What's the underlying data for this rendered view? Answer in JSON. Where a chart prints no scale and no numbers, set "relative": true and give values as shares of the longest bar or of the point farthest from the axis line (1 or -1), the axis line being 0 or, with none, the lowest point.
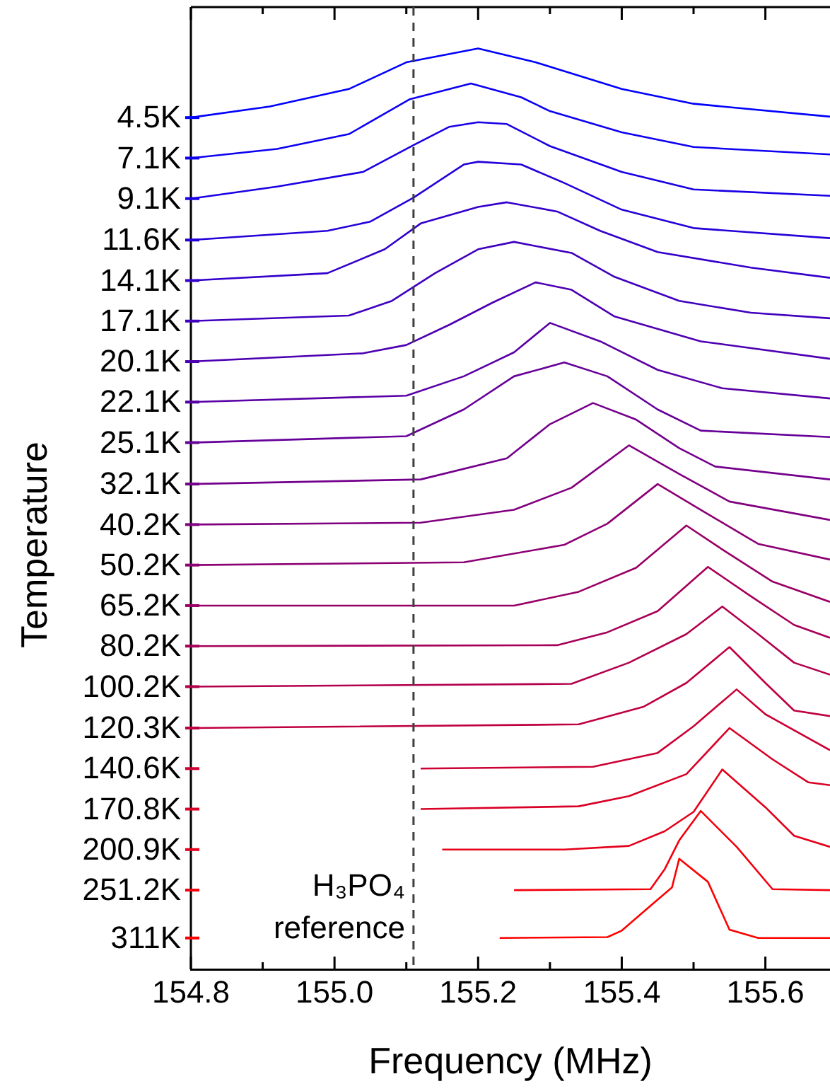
{
  "chart_data": {
    "type": "line",
    "xlabel": "Frequency (MHz)",
    "ylabel": "Temperature",
    "relative": true,
    "xlim": [
      154.8,
      155.69
    ],
    "xticks": [
      154.8,
      {
        "value": 154.9,
        "label": null
      },
      {
        "value": 155.0,
        "label": "155.0"
      },
      {
        "value": 155.1,
        "label": null
      },
      155.2,
      {
        "value": 155.3,
        "label": null
      },
      155.4,
      {
        "value": 155.5,
        "label": null
      },
      155.6
    ],
    "grid": false,
    "legend": "left",
    "marker": "none",
    "line_style": "solid",
    "ref_lines": [
      {
        "axis": "x",
        "value": 155.11,
        "label": "H₃PO₄ reference",
        "color": "#404040",
        "line_style": "dashed"
      }
    ],
    "series": [
      {
        "name": "4.5K",
        "color": "#0000ff",
        "x": [
          154.8,
          154.91,
          155.02,
          155.1,
          155.2,
          155.28,
          155.4,
          155.5,
          155.69
        ],
        "values": [
          0.925,
          0.937,
          0.956,
          0.985,
          1.0,
          0.985,
          0.956,
          0.94,
          0.926
        ]
      },
      {
        "name": "7.1K",
        "color": "#0d00f2",
        "x": [
          154.8,
          154.92,
          155.02,
          155.105,
          155.19,
          155.26,
          155.3,
          155.4,
          155.5,
          155.69
        ],
        "values": [
          0.881,
          0.891,
          0.907,
          0.945,
          0.962,
          0.947,
          0.932,
          0.909,
          0.893,
          0.885
        ]
      },
      {
        "name": "9.1K",
        "color": "#1a00e5",
        "x": [
          154.8,
          154.92,
          155.04,
          155.11,
          155.16,
          155.2,
          155.24,
          155.3,
          155.4,
          155.5,
          155.69
        ],
        "values": [
          0.837,
          0.85,
          0.866,
          0.895,
          0.915,
          0.92,
          0.918,
          0.894,
          0.866,
          0.847,
          0.84
        ]
      },
      {
        "name": "11.6K",
        "color": "#2600d9",
        "x": [
          154.8,
          154.99,
          155.05,
          155.11,
          155.18,
          155.2,
          155.26,
          155.32,
          155.4,
          155.5,
          155.69
        ],
        "values": [
          0.792,
          0.802,
          0.812,
          0.838,
          0.874,
          0.877,
          0.874,
          0.854,
          0.825,
          0.805,
          0.794
        ]
      },
      {
        "name": "14.1K",
        "color": "#3300cc",
        "x": [
          154.8,
          154.99,
          155.07,
          155.12,
          155.2,
          155.24,
          155.31,
          155.37,
          155.45,
          155.58,
          155.69
        ],
        "values": [
          0.748,
          0.756,
          0.782,
          0.81,
          0.828,
          0.833,
          0.823,
          0.802,
          0.779,
          0.762,
          0.751
        ]
      },
      {
        "name": "17.1K",
        "color": "#4000bf",
        "x": [
          154.8,
          155.02,
          155.08,
          155.14,
          155.2,
          155.25,
          155.33,
          155.39,
          155.48,
          155.58,
          155.69
        ],
        "values": [
          0.704,
          0.71,
          0.726,
          0.756,
          0.782,
          0.79,
          0.778,
          0.752,
          0.726,
          0.713,
          0.707
        ]
      },
      {
        "name": "20.1K",
        "color": "#4d00b2",
        "x": [
          154.8,
          155.04,
          155.1,
          155.16,
          155.22,
          155.28,
          155.33,
          155.39,
          155.51,
          155.69
        ],
        "values": [
          0.66,
          0.669,
          0.678,
          0.7,
          0.724,
          0.746,
          0.738,
          0.709,
          0.682,
          0.663
        ]
      },
      {
        "name": "22.1K",
        "color": "#5900a6",
        "x": [
          154.8,
          155.1,
          155.18,
          155.25,
          155.3,
          155.37,
          155.45,
          155.54,
          155.69
        ],
        "values": [
          0.616,
          0.623,
          0.644,
          0.67,
          0.702,
          0.682,
          0.651,
          0.631,
          0.62
        ]
      },
      {
        "name": "25.1K",
        "color": "#660099",
        "x": [
          154.8,
          155.1,
          155.18,
          155.25,
          155.32,
          155.38,
          155.45,
          155.51,
          155.69
        ],
        "values": [
          0.572,
          0.579,
          0.608,
          0.644,
          0.659,
          0.644,
          0.608,
          0.585,
          0.578
        ]
      },
      {
        "name": "32.1K",
        "color": "#73008c",
        "x": [
          154.8,
          155.12,
          155.24,
          155.3,
          155.36,
          155.42,
          155.48,
          155.53,
          155.69
        ],
        "values": [
          0.527,
          0.532,
          0.555,
          0.592,
          0.615,
          0.597,
          0.566,
          0.546,
          0.532
        ]
      },
      {
        "name": "40.2K",
        "color": "#800080",
        "x": [
          154.8,
          155.12,
          155.25,
          155.33,
          155.41,
          155.48,
          155.55,
          155.69
        ],
        "values": [
          0.483,
          0.485,
          0.499,
          0.523,
          0.569,
          0.538,
          0.508,
          0.488
        ]
      },
      {
        "name": "50.2K",
        "color": "#8c0073",
        "x": [
          154.8,
          155.18,
          155.32,
          155.38,
          155.45,
          155.51,
          155.59,
          155.69
        ],
        "values": [
          0.439,
          0.442,
          0.461,
          0.484,
          0.527,
          0.499,
          0.462,
          0.445
        ]
      },
      {
        "name": "65.2K",
        "color": "#990066",
        "x": [
          154.8,
          155.25,
          155.34,
          155.42,
          155.49,
          155.54,
          155.61,
          155.69
        ],
        "values": [
          0.395,
          0.395,
          0.41,
          0.436,
          0.482,
          0.456,
          0.421,
          0.399
        ]
      },
      {
        "name": "80.2K",
        "color": "#a60059",
        "x": [
          154.8,
          155.31,
          155.38,
          155.45,
          155.52,
          155.58,
          155.64,
          155.69
        ],
        "values": [
          0.351,
          0.352,
          0.366,
          0.389,
          0.437,
          0.405,
          0.374,
          0.36
        ]
      },
      {
        "name": "100.2K",
        "color": "#b2004d",
        "x": [
          154.8,
          155.33,
          155.41,
          155.49,
          155.54,
          155.59,
          155.64,
          155.69
        ],
        "values": [
          0.307,
          0.31,
          0.333,
          0.364,
          0.394,
          0.364,
          0.333,
          0.32
        ]
      },
      {
        "name": "120.3K",
        "color": "#bf0040",
        "x": [
          154.8,
          155.34,
          155.43,
          155.49,
          155.55,
          155.6,
          155.64,
          155.69
        ],
        "values": [
          0.262,
          0.266,
          0.285,
          0.311,
          0.35,
          0.311,
          0.281,
          0.275
        ]
      },
      {
        "name": "140.6K",
        "color": "#cc0033",
        "x": [
          155.12,
          155.36,
          155.45,
          155.5,
          155.56,
          155.6,
          155.69
        ],
        "values": [
          0.218,
          0.22,
          0.235,
          0.264,
          0.304,
          0.277,
          0.238
        ]
      },
      {
        "name": "170.8K",
        "color": "#d90026",
        "x": [
          155.12,
          155.34,
          155.41,
          155.49,
          155.55,
          155.61,
          155.66,
          155.69
        ],
        "values": [
          0.174,
          0.177,
          0.188,
          0.212,
          0.262,
          0.228,
          0.203,
          0.2
        ]
      },
      {
        "name": "200.9K",
        "color": "#e5001a",
        "x": [
          155.15,
          155.32,
          155.41,
          155.46,
          155.5,
          155.54,
          155.6,
          155.64,
          155.69
        ],
        "values": [
          0.13,
          0.13,
          0.134,
          0.15,
          0.171,
          0.217,
          0.176,
          0.145,
          0.133
        ]
      },
      {
        "name": "251.2K",
        "color": "#f2000d",
        "x": [
          155.25,
          155.44,
          155.46,
          155.48,
          155.51,
          155.56,
          155.61,
          155.69
        ],
        "values": [
          0.086,
          0.087,
          0.109,
          0.14,
          0.172,
          0.133,
          0.087,
          0.086
        ]
      },
      {
        "name": "311K",
        "color": "#ff0000",
        "x": [
          155.23,
          155.38,
          155.4,
          155.44,
          155.47,
          155.48,
          155.52,
          155.55,
          155.59,
          155.69
        ],
        "values": [
          0.034,
          0.035,
          0.042,
          0.069,
          0.089,
          0.12,
          0.095,
          0.043,
          0.034,
          0.034
        ]
      }
    ]
  }
}
